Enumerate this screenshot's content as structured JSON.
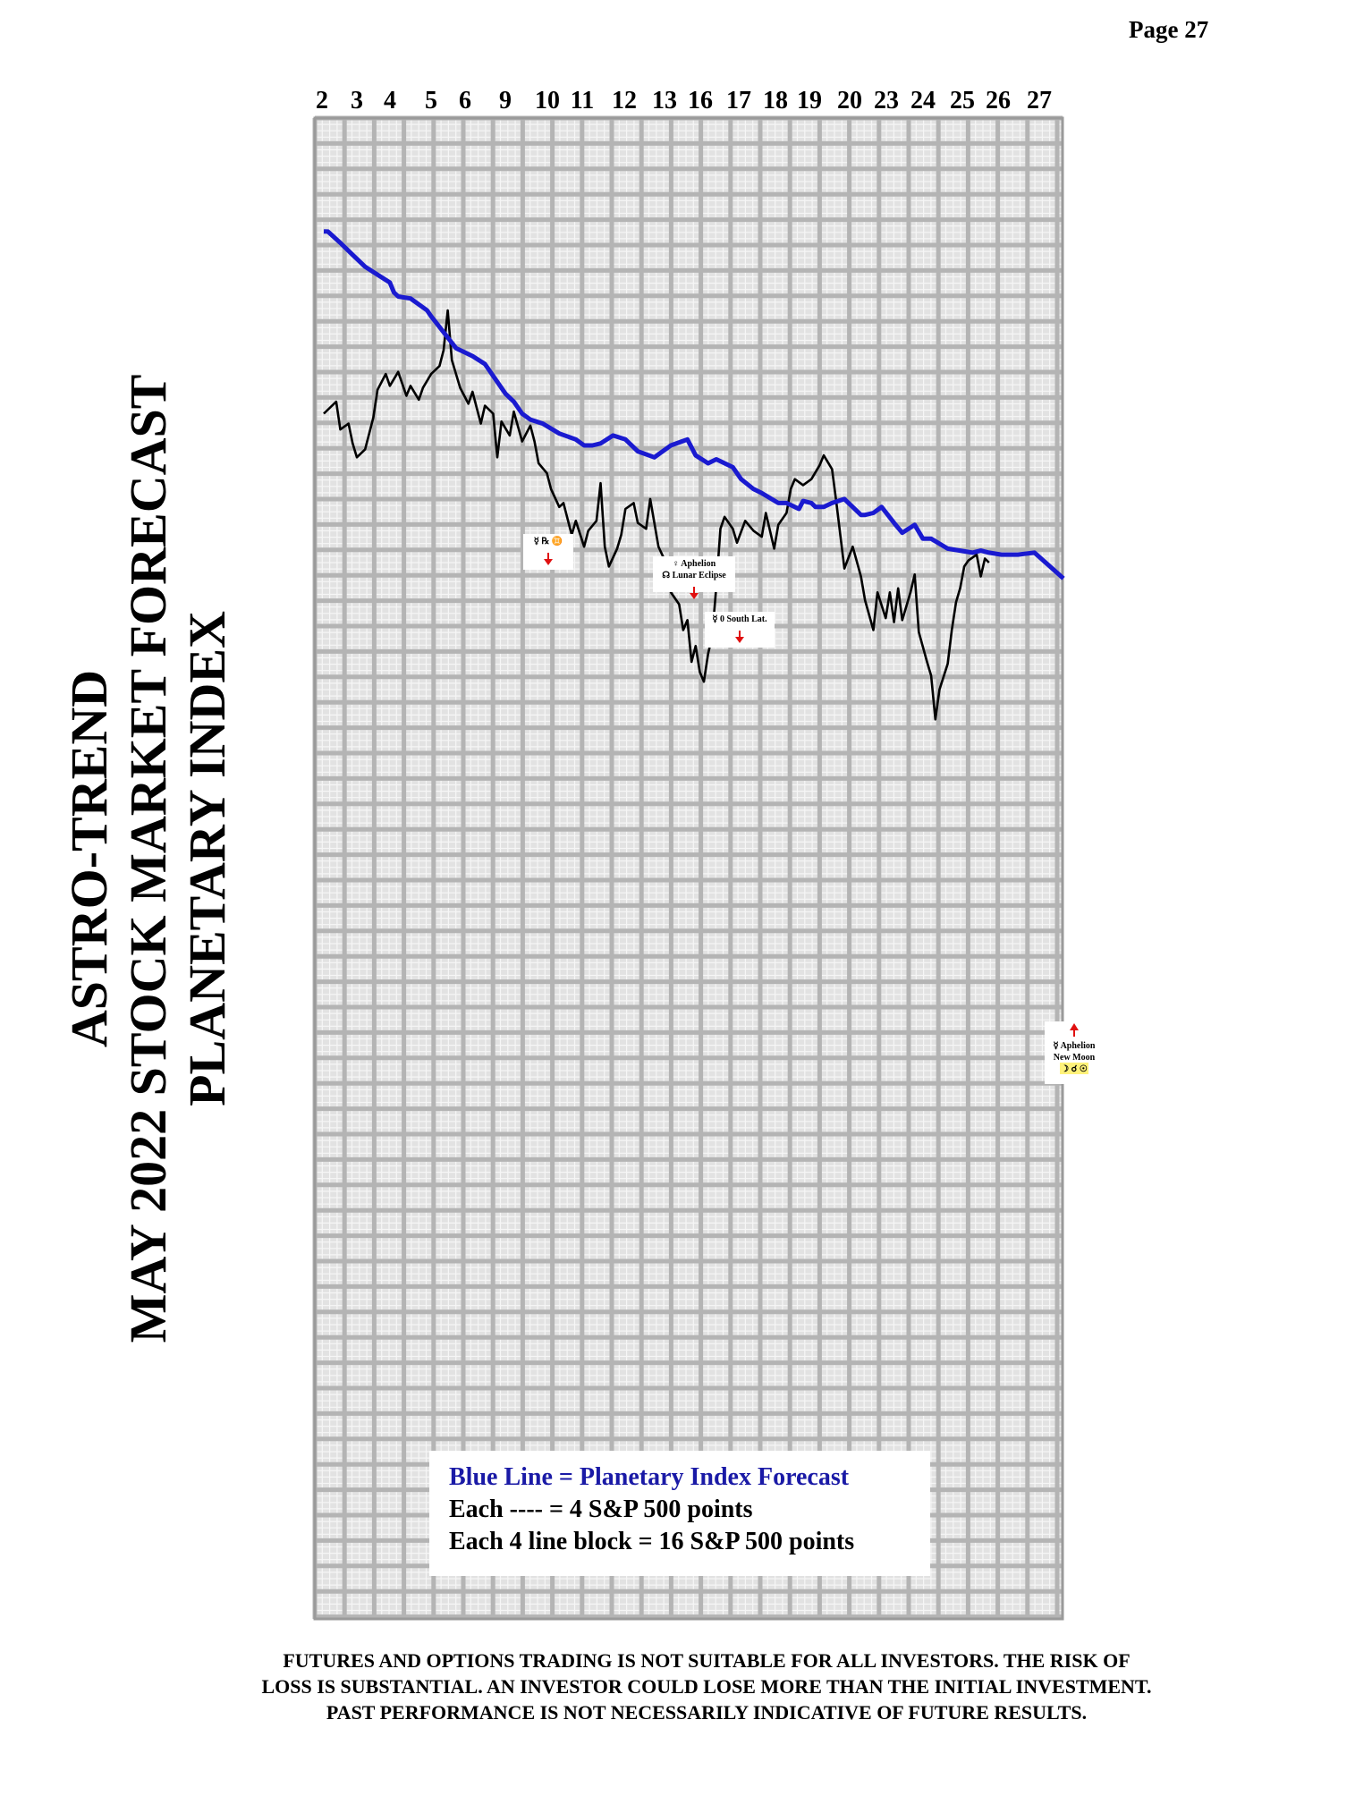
{
  "page_number": "Page  27",
  "title_lines": [
    "ASTRO-TREND",
    "MAY 2022  STOCK MARKET FORECAST",
    "PLANETARY INDEX"
  ],
  "legend": {
    "line1": "Blue Line = Planetary Index Forecast",
    "line2": "Each ---- =   4 S&P 500 points",
    "line3": "Each 4 line block =  16  S&P 500 points"
  },
  "disclaimer": [
    "FUTURES AND OPTIONS TRADING IS NOT SUITABLE FOR ALL INVESTORS.  THE RISK OF",
    "LOSS IS SUBSTANTIAL.  AN INVESTOR COULD LOSE MORE THAN THE INITIAL INVESTMENT.",
    "PAST PERFORMANCE IS NOT NECESSARILY INDICATIVE OF FUTURE RESULTS."
  ],
  "colors": {
    "forecast": "#1a1ad0",
    "price": "#000000",
    "grid": "#b4b4b4",
    "gridBg": "#e2e2e2",
    "arrow": "#e01010",
    "note": "#fff27a"
  },
  "chart_data": {
    "type": "line",
    "categories": [
      "2",
      "3",
      "4",
      "5",
      "6",
      "9",
      "10",
      "11",
      "12",
      "13",
      "16",
      "17",
      "18",
      "19",
      "20",
      "23",
      "24",
      "25",
      "26",
      "27"
    ],
    "units_per_line": 4,
    "units_per_block": 16,
    "series": [
      {
        "name": "Blue Line = Planetary Index Forecast",
        "points": [
          [
            0,
            -1.2
          ],
          [
            0.1,
            -1.3
          ],
          [
            0.4,
            -7
          ],
          [
            0.7,
            -13
          ],
          [
            1,
            -19
          ],
          [
            1.3,
            -23
          ],
          [
            1.6,
            -27
          ],
          [
            1.7,
            -32
          ],
          [
            1.8,
            -34
          ],
          [
            2.1,
            -35
          ],
          [
            2.5,
            -41
          ],
          [
            2.6,
            -44
          ],
          [
            2.9,
            -52
          ],
          [
            3.2,
            -60
          ],
          [
            3.6,
            -64
          ],
          [
            3.9,
            -68
          ],
          [
            4.2,
            -77
          ],
          [
            4.4,
            -83
          ],
          [
            4.6,
            -87
          ],
          [
            4.8,
            -93
          ],
          [
            5.0,
            -96
          ],
          [
            5.3,
            -98
          ],
          [
            5.7,
            -103
          ],
          [
            6.1,
            -106
          ],
          [
            6.3,
            -109
          ],
          [
            6.5,
            -109
          ],
          [
            6.7,
            -108
          ],
          [
            7.0,
            -104
          ],
          [
            7.3,
            -106
          ],
          [
            7.6,
            -112
          ],
          [
            8.0,
            -115
          ],
          [
            8.4,
            -109
          ],
          [
            8.8,
            -106
          ],
          [
            9.0,
            -114
          ],
          [
            9.3,
            -118
          ],
          [
            9.5,
            -116
          ],
          [
            9.9,
            -120
          ],
          [
            10.1,
            -126
          ],
          [
            10.4,
            -131
          ],
          [
            10.6,
            -133
          ],
          [
            11.0,
            -138
          ],
          [
            11.2,
            -138
          ],
          [
            11.5,
            -141
          ],
          [
            11.6,
            -137
          ],
          [
            11.8,
            -138
          ],
          [
            11.9,
            -140
          ],
          [
            12.1,
            -140
          ],
          [
            12.3,
            -138
          ],
          [
            12.6,
            -136
          ],
          [
            13.0,
            -144
          ],
          [
            13.1,
            -144
          ],
          [
            13.3,
            -143
          ],
          [
            13.5,
            -140
          ],
          [
            13.8,
            -148
          ],
          [
            14.0,
            -153
          ],
          [
            14.3,
            -149
          ],
          [
            14.5,
            -156
          ],
          [
            14.7,
            -156
          ],
          [
            15.1,
            -161
          ],
          [
            15.7,
            -163
          ],
          [
            15.9,
            -162
          ],
          [
            16.1,
            -163
          ],
          [
            16.4,
            -164
          ],
          [
            16.8,
            -164
          ],
          [
            17.2,
            -163
          ],
          [
            17.9,
            -176
          ]
        ]
      },
      {
        "name": "",
        "points": [
          [
            0,
            -93
          ],
          [
            0.3,
            -87
          ],
          [
            0.4,
            -101
          ],
          [
            0.6,
            -98
          ],
          [
            0.7,
            -108
          ],
          [
            0.8,
            -115
          ],
          [
            1.0,
            -111
          ],
          [
            1.2,
            -95
          ],
          [
            1.3,
            -81
          ],
          [
            1.5,
            -73
          ],
          [
            1.6,
            -79
          ],
          [
            1.8,
            -72
          ],
          [
            2.0,
            -84
          ],
          [
            2.1,
            -79
          ],
          [
            2.3,
            -86
          ],
          [
            2.4,
            -80
          ],
          [
            2.6,
            -73
          ],
          [
            2.8,
            -69
          ],
          [
            2.9,
            -61
          ],
          [
            3.0,
            -41
          ],
          [
            3.1,
            -66
          ],
          [
            3.3,
            -80
          ],
          [
            3.5,
            -88
          ],
          [
            3.6,
            -82
          ],
          [
            3.8,
            -98
          ],
          [
            3.9,
            -89
          ],
          [
            4.1,
            -93
          ],
          [
            4.2,
            -115
          ],
          [
            4.3,
            -97
          ],
          [
            4.5,
            -104
          ],
          [
            4.6,
            -92
          ],
          [
            4.8,
            -107
          ],
          [
            5.0,
            -99
          ],
          [
            5.1,
            -107
          ],
          [
            5.2,
            -118
          ],
          [
            5.4,
            -123
          ],
          [
            5.5,
            -131
          ],
          [
            5.7,
            -140
          ],
          [
            5.8,
            -138
          ],
          [
            6.0,
            -154
          ],
          [
            6.1,
            -147
          ],
          [
            6.3,
            -160
          ],
          [
            6.4,
            -152
          ],
          [
            6.6,
            -147
          ],
          [
            6.7,
            -128
          ],
          [
            6.8,
            -160
          ],
          [
            6.9,
            -170
          ],
          [
            7.1,
            -161
          ],
          [
            7.2,
            -154
          ],
          [
            7.3,
            -141
          ],
          [
            7.5,
            -138
          ],
          [
            7.6,
            -148
          ],
          [
            7.8,
            -151
          ],
          [
            7.9,
            -136
          ],
          [
            8.1,
            -160
          ],
          [
            8.3,
            -169
          ],
          [
            8.4,
            -183
          ],
          [
            8.6,
            -189
          ],
          [
            8.7,
            -202
          ],
          [
            8.8,
            -197
          ],
          [
            8.9,
            -218
          ],
          [
            9.0,
            -210
          ],
          [
            9.1,
            -223
          ],
          [
            9.2,
            -228
          ],
          [
            9.3,
            -214
          ],
          [
            9.4,
            -205
          ],
          [
            9.5,
            -180
          ],
          [
            9.6,
            -151
          ],
          [
            9.7,
            -145
          ],
          [
            9.9,
            -151
          ],
          [
            10.0,
            -158
          ],
          [
            10.2,
            -147
          ],
          [
            10.4,
            -152
          ],
          [
            10.6,
            -155
          ],
          [
            10.7,
            -143
          ],
          [
            10.9,
            -161
          ],
          [
            11.0,
            -149
          ],
          [
            11.2,
            -143
          ],
          [
            11.3,
            -131
          ],
          [
            11.4,
            -126
          ],
          [
            11.6,
            -129
          ],
          [
            11.8,
            -126
          ],
          [
            12.0,
            -119
          ],
          [
            12.1,
            -114
          ],
          [
            12.3,
            -121
          ],
          [
            12.4,
            -137
          ],
          [
            12.6,
            -171
          ],
          [
            12.8,
            -160
          ],
          [
            13.0,
            -175
          ],
          [
            13.1,
            -187
          ],
          [
            13.3,
            -202
          ],
          [
            13.4,
            -183
          ],
          [
            13.6,
            -196
          ],
          [
            13.7,
            -183
          ],
          [
            13.8,
            -198
          ],
          [
            13.9,
            -181
          ],
          [
            14.0,
            -197
          ],
          [
            14.2,
            -183
          ],
          [
            14.3,
            -174
          ],
          [
            14.4,
            -203
          ],
          [
            14.6,
            -218
          ],
          [
            14.7,
            -225
          ],
          [
            14.8,
            -247
          ],
          [
            14.9,
            -232
          ],
          [
            15.1,
            -219
          ],
          [
            15.2,
            -202
          ],
          [
            15.3,
            -188
          ],
          [
            15.4,
            -181
          ],
          [
            15.5,
            -170
          ],
          [
            15.6,
            -167
          ],
          [
            15.8,
            -164
          ],
          [
            15.9,
            -175
          ],
          [
            16.0,
            -166
          ],
          [
            16.1,
            -168
          ]
        ]
      }
    ],
    "annotations": [
      {
        "label": "☿ ℞ ♊",
        "direction": "down",
        "at_day": "10"
      },
      {
        "label": "♀ Aphelion",
        "label2": "☊ Lunar Eclipse",
        "direction": "down",
        "at_day": "16"
      },
      {
        "label": "☿ 0 South Lat.",
        "direction": "down",
        "at_day": "17"
      },
      {
        "label": "☿ Aphelion",
        "label2": "New Moon",
        "label3": "☽ ☌ ☉",
        "direction": "up",
        "at_day": "27"
      }
    ]
  }
}
